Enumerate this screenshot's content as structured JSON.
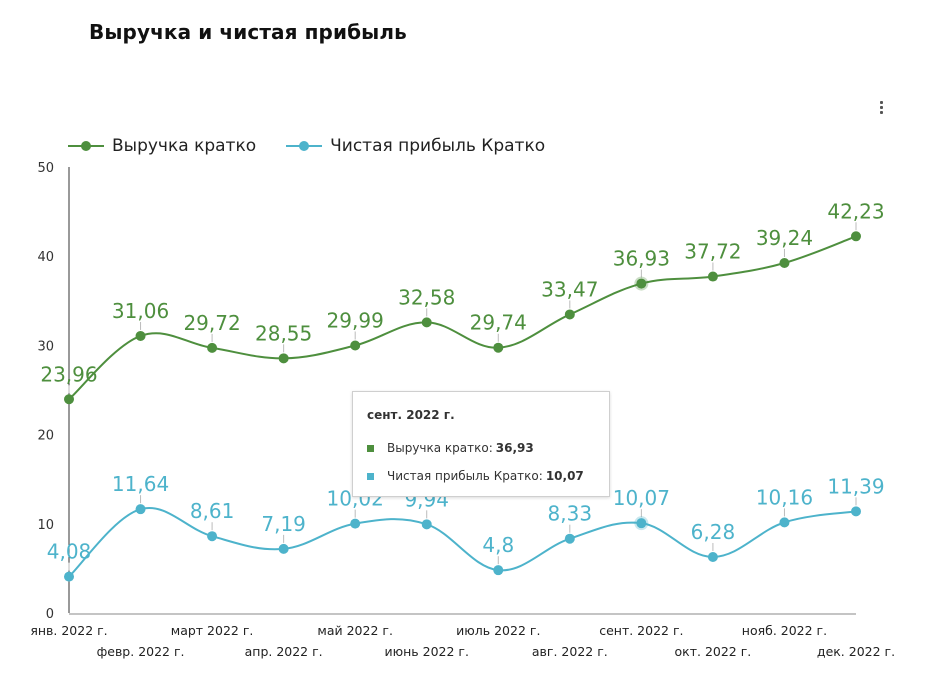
{
  "title": "Выручка и чистая прибыль",
  "menu_icon": "more-vertical-icon",
  "chart_data": {
    "type": "line",
    "title": "Выручка и чистая прибыль",
    "xlabel": "",
    "ylabel": "",
    "ylim": [
      0,
      50
    ],
    "yticks": [
      "0",
      "10",
      "20",
      "30",
      "40",
      "50"
    ],
    "ytick_values": [
      0,
      10,
      20,
      30,
      40,
      50
    ],
    "grid": false,
    "legend_position": "top-left",
    "smooth": true,
    "categories": [
      "янв. 2022 г.",
      "февр. 2022 г.",
      "март 2022 г.",
      "апр. 2022 г.",
      "май 2022 г.",
      "июнь 2022 г.",
      "июль 2022 г.",
      "авг. 2022 г.",
      "сент. 2022 г.",
      "окт. 2022 г.",
      "нояб. 2022 г.",
      "дек. 2022 г."
    ],
    "series": [
      {
        "name": "Выручка кратко",
        "color": "#4e8f3e",
        "values": [
          23.96,
          31.06,
          29.72,
          28.55,
          29.99,
          32.58,
          29.74,
          33.47,
          36.93,
          37.72,
          39.24,
          42.23
        ],
        "labels": [
          "23,96",
          "31,06",
          "29,72",
          "28,55",
          "29,99",
          "32,58",
          "29,74",
          "33,47",
          "36,93",
          "37,72",
          "39,24",
          "42,23"
        ]
      },
      {
        "name": "Чистая прибыль Кратко",
        "color": "#4db3cb",
        "values": [
          4.08,
          11.64,
          8.61,
          7.19,
          10.02,
          9.94,
          4.8,
          8.33,
          10.07,
          6.28,
          10.16,
          11.39
        ],
        "labels": [
          "4,08",
          "11,64",
          "8,61",
          "7,19",
          "10,02",
          "9,94",
          "4,8",
          "8,33",
          "10,07",
          "6,28",
          "10,16",
          "11,39"
        ]
      }
    ]
  },
  "tooltip": {
    "title": "сент. 2022 г.",
    "rows": [
      {
        "label": "Выручка кратко:",
        "value": "36,93",
        "color": "#4e8f3e"
      },
      {
        "label": "Чистая прибыль Кратко:",
        "value": "10,07",
        "color": "#4db3cb"
      }
    ],
    "highlighted_index": 8
  }
}
